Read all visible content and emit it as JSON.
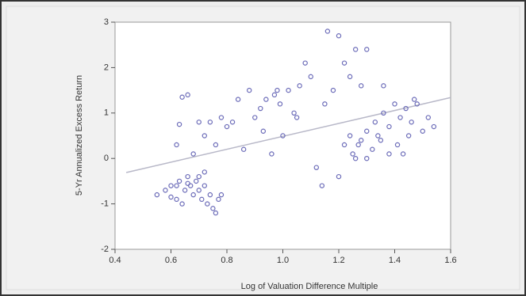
{
  "chart_data": {
    "type": "scatter",
    "x_label": "Log of Valuation Difference Multiple",
    "y_label": "5-Yr Annualized Excess Return",
    "xlim": [
      0.4,
      1.6
    ],
    "ylim": [
      -2,
      3
    ],
    "xticks": [
      0.4,
      0.6,
      0.8,
      {
        "value": 1,
        "label": "1.0"
      },
      1.2,
      1.4,
      1.6
    ],
    "yticks": [
      -2,
      -1,
      0,
      1,
      2,
      3
    ],
    "color": "#6b6bb8",
    "trendline": {
      "x": [
        0.44,
        1.6
      ],
      "y": [
        -0.31,
        1.34
      ],
      "color": "#b8b8c8"
    },
    "x": [
      0.55,
      0.58,
      0.6,
      0.62,
      0.63,
      0.64,
      0.65,
      0.66,
      0.67,
      0.68,
      0.69,
      0.7,
      0.71,
      0.72,
      0.73,
      0.74,
      0.75,
      0.76,
      0.77,
      0.78,
      0.62,
      0.66,
      0.7,
      0.72,
      0.6,
      0.62,
      0.63,
      0.64,
      0.66,
      0.68,
      0.7,
      0.72,
      0.74,
      0.76,
      0.78,
      0.8,
      0.82,
      0.84,
      0.86,
      0.88,
      0.9,
      0.92,
      0.94,
      0.96,
      0.97,
      0.99,
      1.0,
      1.02,
      1.04,
      1.06,
      1.08,
      1.1,
      1.05,
      0.98,
      0.93,
      1.16,
      1.2,
      1.22,
      1.24,
      1.26,
      1.3,
      1.28,
      1.36,
      1.18,
      1.15,
      1.12,
      1.14,
      1.2,
      1.22,
      1.24,
      1.25,
      1.26,
      1.28,
      1.3,
      1.32,
      1.33,
      1.35,
      1.36,
      1.38,
      1.4,
      1.41,
      1.42,
      1.44,
      1.45,
      1.46,
      1.48,
      1.5,
      1.52,
      1.54,
      1.43,
      1.38,
      1.34,
      1.3,
      1.27,
      1.47
    ],
    "y": [
      -0.8,
      -0.7,
      -0.6,
      -0.9,
      -0.5,
      -1.0,
      -0.7,
      -0.4,
      -0.6,
      -0.8,
      -0.5,
      -0.7,
      -0.9,
      -0.6,
      -1.0,
      -0.8,
      -1.1,
      -1.2,
      -0.9,
      -0.8,
      -0.6,
      -0.55,
      -0.4,
      -0.3,
      -0.85,
      0.3,
      0.75,
      1.35,
      1.4,
      0.1,
      0.8,
      0.5,
      0.8,
      0.3,
      0.9,
      0.7,
      0.8,
      1.3,
      0.2,
      1.5,
      0.9,
      1.1,
      1.3,
      0.1,
      1.4,
      1.2,
      0.5,
      1.5,
      1.0,
      1.6,
      2.1,
      1.8,
      0.9,
      1.5,
      0.6,
      2.8,
      2.7,
      2.1,
      1.8,
      2.4,
      2.4,
      1.6,
      1.6,
      1.5,
      1.2,
      -0.2,
      -0.6,
      -0.4,
      0.3,
      0.5,
      0.1,
      0.0,
      0.4,
      0.6,
      0.2,
      0.8,
      0.4,
      1.0,
      0.7,
      1.2,
      0.3,
      0.9,
      1.1,
      0.5,
      0.8,
      1.2,
      0.6,
      0.9,
      0.7,
      0.1,
      0.1,
      0.5,
      0.0,
      0.3,
      1.3
    ]
  }
}
